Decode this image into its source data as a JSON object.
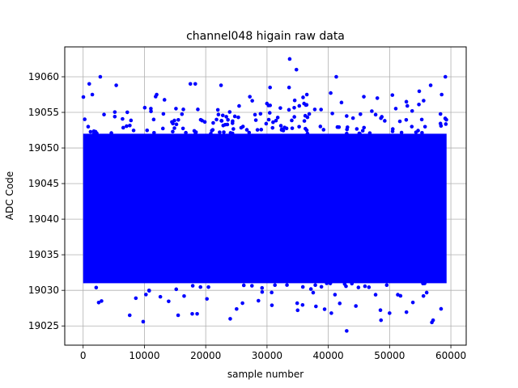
{
  "chart_data": {
    "type": "scatter",
    "title": "channel048 higain raw data",
    "xlabel": "sample number",
    "ylabel": "ADC Code",
    "xlim": [
      -3000,
      62500
    ],
    "ylim": [
      19022.3,
      19064.2
    ],
    "x_ticks": [
      0,
      10000,
      20000,
      30000,
      40000,
      50000,
      60000
    ],
    "y_ticks": [
      19025,
      19030,
      19035,
      19040,
      19045,
      19050,
      19055,
      19060
    ],
    "grid": true,
    "color": "#0000ff",
    "marker": "circle",
    "n_samples": 59300,
    "dense_band": {
      "x_range": [
        0,
        59300
      ],
      "y_range": [
        19031,
        19052
      ],
      "center": 19043
    },
    "outliers": [
      [
        33700,
        19062.5
      ],
      [
        34800,
        19061
      ],
      [
        2800,
        19060
      ],
      [
        41300,
        19060
      ],
      [
        59100,
        19060
      ],
      [
        1000,
        19059
      ],
      [
        17500,
        19059
      ],
      [
        18300,
        19059
      ],
      [
        22500,
        19058.8
      ],
      [
        30500,
        19058.5
      ],
      [
        33600,
        19058.5
      ],
      [
        36500,
        19057.5
      ],
      [
        5400,
        19058.8
      ],
      [
        58500,
        19057.5
      ],
      [
        1500,
        19057.5
      ],
      [
        12000,
        19057.5
      ],
      [
        27200,
        19057.2
      ],
      [
        45800,
        19057.2
      ],
      [
        48000,
        19057
      ],
      [
        56700,
        19058.8
      ],
      [
        24000,
        19026
      ],
      [
        15500,
        19026.5
      ],
      [
        17800,
        19026.7
      ],
      [
        18600,
        19026.7
      ],
      [
        9800,
        19025.6
      ],
      [
        7600,
        19026.5
      ],
      [
        43000,
        19024.3
      ],
      [
        48600,
        19025.8
      ],
      [
        56900,
        19025.5
      ],
      [
        57100,
        19025.8
      ],
      [
        40500,
        19026.8
      ],
      [
        35000,
        19027.2
      ],
      [
        30800,
        19027.9
      ],
      [
        50000,
        19026.8
      ],
      [
        3000,
        19028.5
      ],
      [
        8600,
        19028.9
      ],
      [
        12600,
        19029.1
      ],
      [
        20200,
        19028.8
      ],
      [
        26000,
        19028.2
      ],
      [
        44500,
        19027.8
      ],
      [
        53800,
        19028.3
      ],
      [
        58400,
        19027.4
      ]
    ]
  }
}
